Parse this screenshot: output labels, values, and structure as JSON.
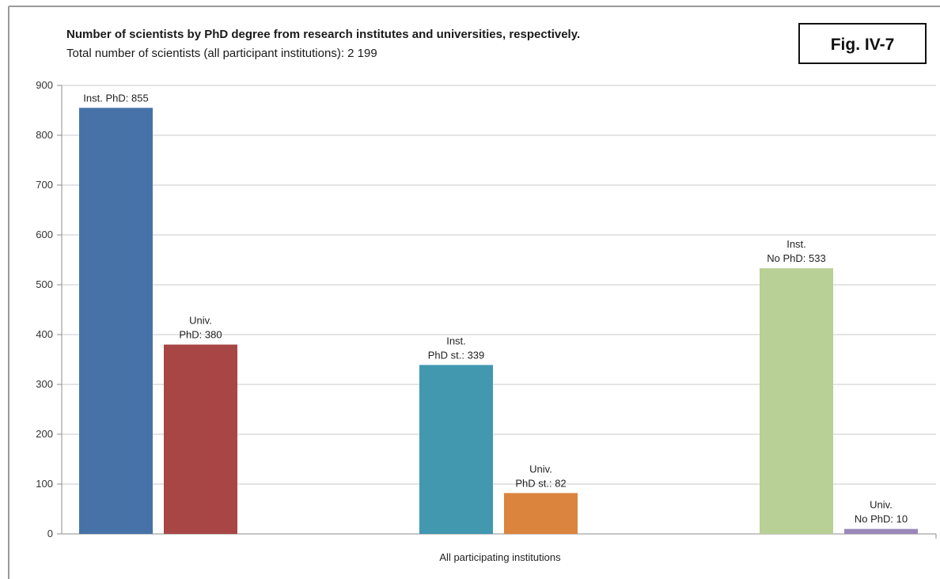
{
  "figure_label": "Fig. IV-7",
  "chart_data": {
    "type": "bar",
    "title": "Number of scientists by PhD degree from  research institutes and universities, respectively.",
    "subtitle": "Total number of scientists (all participant institutions): 2 199",
    "categories": [
      "All participating institutions"
    ],
    "ylim": [
      0,
      900
    ],
    "yticks": [
      0,
      100,
      200,
      300,
      400,
      500,
      600,
      700,
      800,
      900
    ],
    "grid": true,
    "legend": "none",
    "series": [
      {
        "label_lines": [
          "Inst. PhD: 855"
        ],
        "value": 855,
        "color": "#4672A8"
      },
      {
        "label_lines": [
          "Univ.",
          "PhD: 380"
        ],
        "value": 380,
        "color": "#A84645"
      },
      {
        "label_lines": [
          "Inst.",
          "PhD st.: 339"
        ],
        "value": 339,
        "color": "#4198AF"
      },
      {
        "label_lines": [
          "Univ.",
          "PhD st.: 82"
        ],
        "value": 82,
        "color": "#DB843D"
      },
      {
        "label_lines": [
          "Inst.",
          "No PhD: 533"
        ],
        "value": 533,
        "color": "#B8CF95"
      },
      {
        "label_lines": [
          "Univ.",
          "No PhD: 10"
        ],
        "value": 10,
        "color": "#9A88BA"
      }
    ]
  }
}
